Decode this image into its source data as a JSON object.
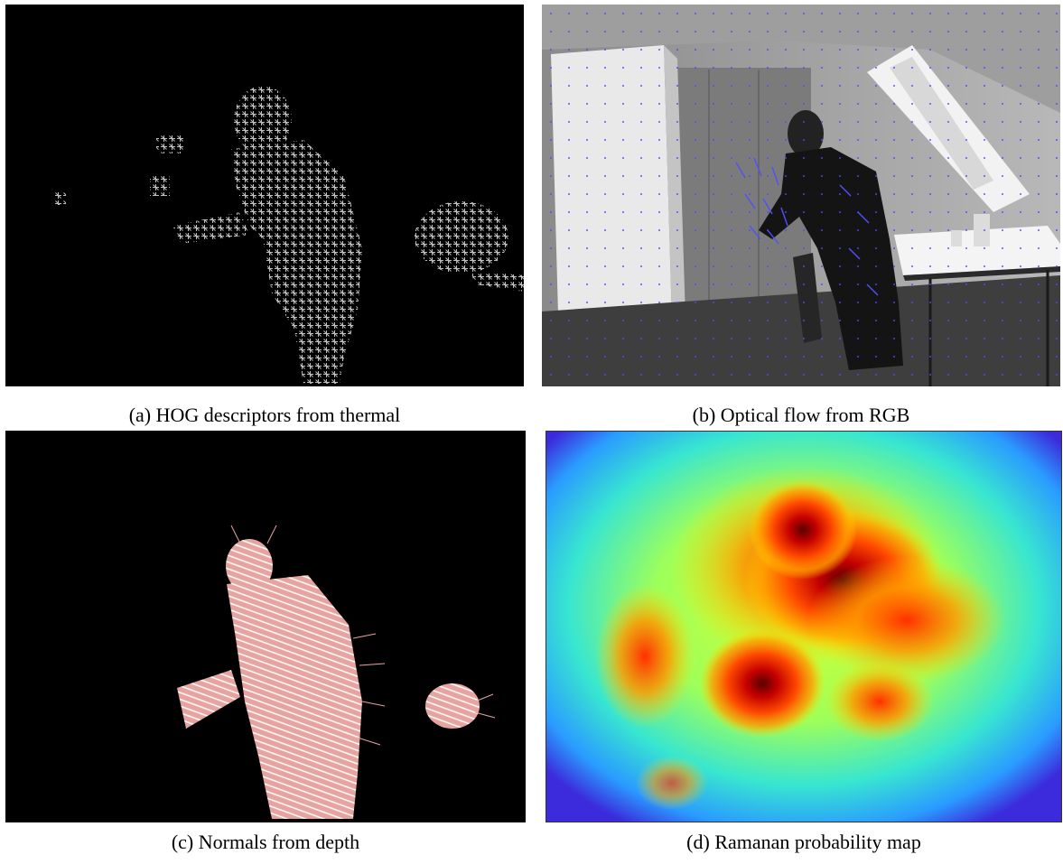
{
  "figure": {
    "panels": [
      {
        "id": "a",
        "caption": "(a) HOG descriptors from thermal"
      },
      {
        "id": "b",
        "caption": "(b) Optical flow from RGB"
      },
      {
        "id": "c",
        "caption": "(c) Normals from depth"
      },
      {
        "id": "d",
        "caption": "(d) Ramanan probability map"
      }
    ]
  }
}
